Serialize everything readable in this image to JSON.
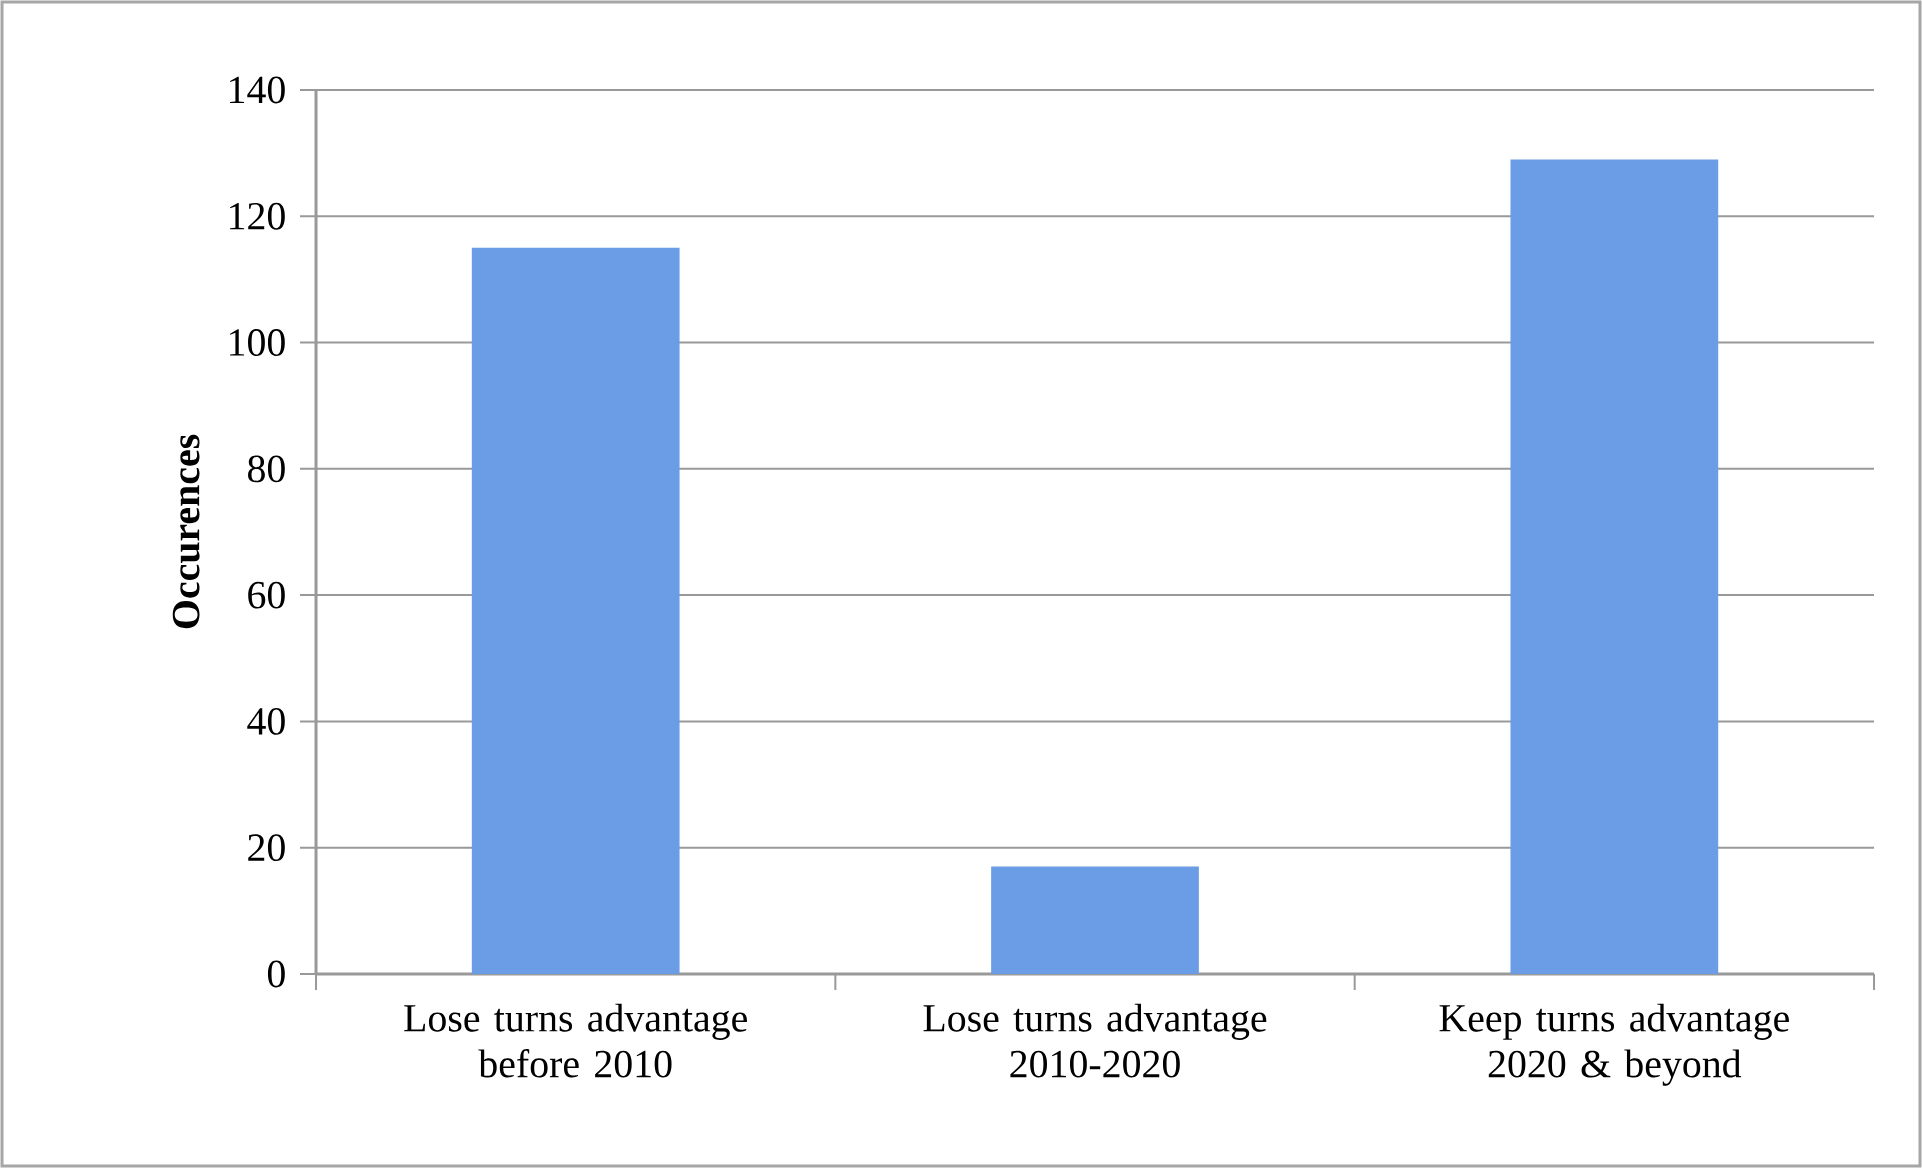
{
  "chart_data": {
    "type": "bar",
    "ylabel": "Occurences",
    "categories": [
      "Lose turns advantage before 2010",
      "Lose turns advantage 2010-2020",
      "Keep turns advantage 2020 & beyond"
    ],
    "values": [
      115,
      17,
      129
    ],
    "color": "#6a9de6",
    "ylim": [
      0,
      140
    ],
    "yticks": [
      0,
      20,
      40,
      60,
      80,
      100,
      120,
      140
    ],
    "grid": "y"
  }
}
